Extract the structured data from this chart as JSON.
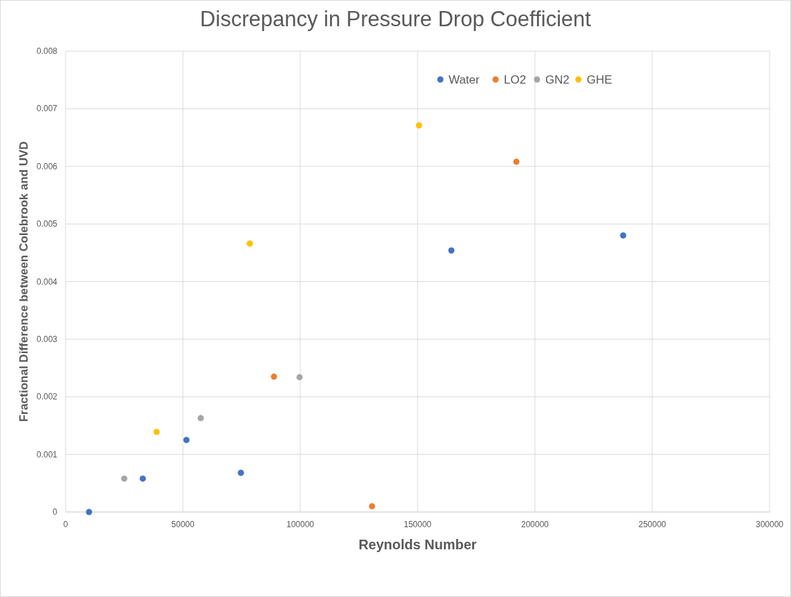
{
  "chart_data": {
    "type": "scatter",
    "title": "Discrepancy in Pressure Drop Coefficient",
    "xlabel": "Reynolds Number",
    "ylabel": "Fractional Difference between Colebrook and UVD",
    "xlim": [
      0,
      300000
    ],
    "xticks": [
      0,
      50000,
      100000,
      150000,
      200000,
      250000,
      300000
    ],
    "ylim": [
      0,
      0.008
    ],
    "yticks": [
      0,
      0.001,
      0.002,
      0.003,
      0.004,
      0.005,
      0.006,
      0.007,
      0.008
    ],
    "grid": true,
    "legend": "top right",
    "marker": "circle",
    "series": [
      {
        "name": "Water",
        "color": "#4472c4",
        "x": [
          10000,
          32900,
          51500,
          74700,
          164400,
          237600
        ],
        "values": [
          0,
          0.00058,
          0.00125,
          0.00068,
          0.00454,
          0.0048
        ]
      },
      {
        "name": "LO2",
        "color": "#ed7d31",
        "x": [
          88800,
          130600,
          192100
        ],
        "values": [
          0.00235,
          0.0001,
          0.00608
        ]
      },
      {
        "name": "GN2",
        "color": "#a5a5a5",
        "x": [
          25000,
          57600,
          99700
        ],
        "values": [
          0.00058,
          0.00163,
          0.00234
        ]
      },
      {
        "name": "GHE",
        "color": "#ffc000",
        "x": [
          38800,
          78500,
          150600
        ],
        "values": [
          0.00139,
          0.00466,
          0.00671
        ]
      }
    ]
  }
}
